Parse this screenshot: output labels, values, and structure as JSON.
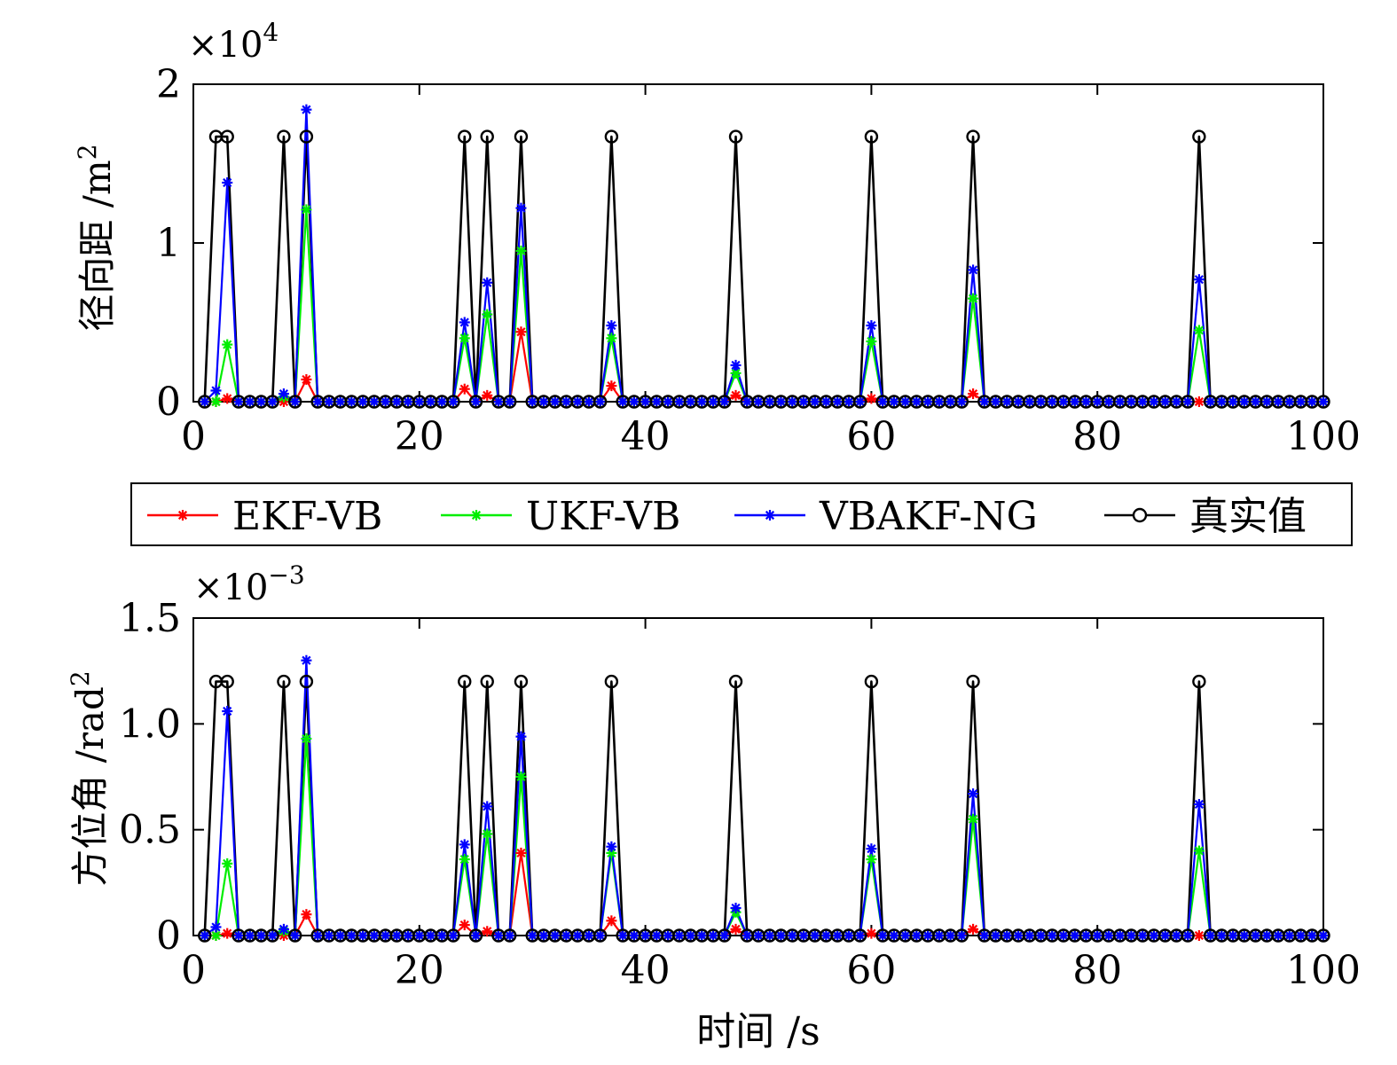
{
  "colors": {
    "EKF-VB": "#ff0000",
    "UKF-VB": "#00ee00",
    "VBAKF-NG": "#0000ff",
    "真实值": "#000000"
  },
  "legend": {
    "placement": "between-panels",
    "entries": [
      {
        "name": "EKF-VB",
        "marker": "asterisk"
      },
      {
        "name": "UKF-VB",
        "marker": "asterisk"
      },
      {
        "name": "VBAKF-NG",
        "marker": "asterisk"
      },
      {
        "name": "真实值",
        "marker": "circle"
      }
    ]
  },
  "xlabel": "时间 /s",
  "chart_data": [
    {
      "type": "line",
      "ylabel_text": "径向距 /m",
      "ylabel_sup": "2",
      "multiplier_base": "×10",
      "multiplier_exp": "4",
      "xlim": [
        0,
        100
      ],
      "ylim": [
        0,
        2
      ],
      "xticks": [
        0,
        20,
        40,
        60,
        80,
        100
      ],
      "xtick_labels": [
        "0",
        "20",
        "40",
        "60",
        "80",
        "100"
      ],
      "yticks": [
        0,
        1,
        2
      ],
      "ytick_labels": [
        "0",
        "1",
        "2"
      ],
      "grid": false,
      "x_range": [
        1,
        100
      ],
      "spikes": [
        {
          "x": 2,
          "真实值": 1.67,
          "EKF-VB": 0.0,
          "UKF-VB": 0.0,
          "VBAKF-NG": 0.07
        },
        {
          "x": 3,
          "真实值": 1.67,
          "EKF-VB": 0.02,
          "UKF-VB": 0.36,
          "VBAKF-NG": 1.38
        },
        {
          "x": 8,
          "真实值": 1.67,
          "EKF-VB": 0.0,
          "UKF-VB": 0.03,
          "VBAKF-NG": 0.05
        },
        {
          "x": 10,
          "真实值": 1.67,
          "EKF-VB": 0.14,
          "UKF-VB": 1.21,
          "VBAKF-NG": 1.84
        },
        {
          "x": 24,
          "真实值": 1.67,
          "EKF-VB": 0.08,
          "UKF-VB": 0.4,
          "VBAKF-NG": 0.5
        },
        {
          "x": 26,
          "真实值": 1.67,
          "EKF-VB": 0.04,
          "UKF-VB": 0.55,
          "VBAKF-NG": 0.75
        },
        {
          "x": 29,
          "真实值": 1.67,
          "EKF-VB": 0.44,
          "UKF-VB": 0.95,
          "VBAKF-NG": 1.22
        },
        {
          "x": 37,
          "真实值": 1.67,
          "EKF-VB": 0.1,
          "UKF-VB": 0.4,
          "VBAKF-NG": 0.48
        },
        {
          "x": 48,
          "真实值": 1.67,
          "EKF-VB": 0.04,
          "UKF-VB": 0.18,
          "VBAKF-NG": 0.23
        },
        {
          "x": 60,
          "真实值": 1.67,
          "EKF-VB": 0.02,
          "UKF-VB": 0.38,
          "VBAKF-NG": 0.48
        },
        {
          "x": 69,
          "真实值": 1.67,
          "EKF-VB": 0.05,
          "UKF-VB": 0.65,
          "VBAKF-NG": 0.83
        },
        {
          "x": 89,
          "真实值": 1.67,
          "EKF-VB": 0.0,
          "UKF-VB": 0.45,
          "VBAKF-NG": 0.77
        }
      ],
      "baseline": {
        "真实值": 0.0,
        "EKF-VB": 0.0,
        "UKF-VB": 0.0,
        "VBAKF-NG": 0.0
      }
    },
    {
      "type": "line",
      "ylabel_text": "方位角 /rad",
      "ylabel_sup": "2",
      "multiplier_base": "×10",
      "multiplier_exp": "−3",
      "xlim": [
        0,
        100
      ],
      "ylim": [
        0,
        1.5
      ],
      "xticks": [
        0,
        20,
        40,
        60,
        80,
        100
      ],
      "xtick_labels": [
        "0",
        "20",
        "40",
        "60",
        "80",
        "100"
      ],
      "yticks": [
        0,
        0.5,
        1.0,
        1.5
      ],
      "ytick_labels": [
        "0",
        "0.5",
        "1.0",
        "1.5"
      ],
      "grid": false,
      "x_range": [
        1,
        100
      ],
      "spikes": [
        {
          "x": 2,
          "真实值": 1.2,
          "EKF-VB": 0.0,
          "UKF-VB": 0.0,
          "VBAKF-NG": 0.04
        },
        {
          "x": 3,
          "真实值": 1.2,
          "EKF-VB": 0.01,
          "UKF-VB": 0.34,
          "VBAKF-NG": 1.06
        },
        {
          "x": 8,
          "真实值": 1.2,
          "EKF-VB": 0.0,
          "UKF-VB": 0.02,
          "VBAKF-NG": 0.03
        },
        {
          "x": 10,
          "真实值": 1.2,
          "EKF-VB": 0.1,
          "UKF-VB": 0.93,
          "VBAKF-NG": 1.3
        },
        {
          "x": 24,
          "真实值": 1.2,
          "EKF-VB": 0.05,
          "UKF-VB": 0.36,
          "VBAKF-NG": 0.43
        },
        {
          "x": 26,
          "真实值": 1.2,
          "EKF-VB": 0.02,
          "UKF-VB": 0.48,
          "VBAKF-NG": 0.61
        },
        {
          "x": 29,
          "真实值": 1.2,
          "EKF-VB": 0.39,
          "UKF-VB": 0.75,
          "VBAKF-NG": 0.94
        },
        {
          "x": 37,
          "真实值": 1.2,
          "EKF-VB": 0.07,
          "UKF-VB": 0.39,
          "VBAKF-NG": 0.42
        },
        {
          "x": 48,
          "真实值": 1.2,
          "EKF-VB": 0.03,
          "UKF-VB": 0.11,
          "VBAKF-NG": 0.13
        },
        {
          "x": 60,
          "真实值": 1.2,
          "EKF-VB": 0.01,
          "UKF-VB": 0.36,
          "VBAKF-NG": 0.41
        },
        {
          "x": 69,
          "真实值": 1.2,
          "EKF-VB": 0.03,
          "UKF-VB": 0.55,
          "VBAKF-NG": 0.67
        },
        {
          "x": 89,
          "真实值": 1.2,
          "EKF-VB": 0.0,
          "UKF-VB": 0.4,
          "VBAKF-NG": 0.62
        }
      ],
      "baseline": {
        "真实值": 0.0,
        "EKF-VB": 0.0,
        "UKF-VB": 0.0,
        "VBAKF-NG": 0.0
      }
    }
  ]
}
